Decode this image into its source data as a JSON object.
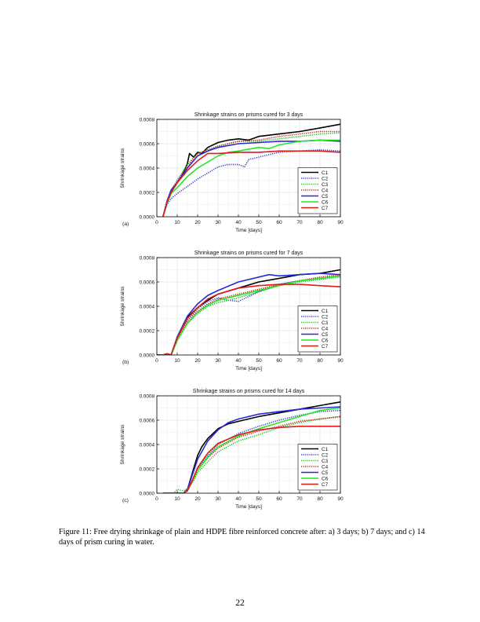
{
  "figure": {
    "caption": "Figure 11: Free drying shrinkage of plain and HDPE fibre reinforced concrete after: a) 3 days; b) 7 days; and c) 14 days of prism curing in water.",
    "page_number": "22"
  },
  "series_styles": [
    {
      "name": "C1",
      "color": "#000000",
      "dash": ""
    },
    {
      "name": "C2",
      "color": "#2f3fd0",
      "dash": "1.2,1.4"
    },
    {
      "name": "C3",
      "color": "#18c318",
      "dash": "1.2,1.4"
    },
    {
      "name": "C4",
      "color": "#cf2020",
      "dash": "1.2,1.4"
    },
    {
      "name": "C5",
      "color": "#2a2ad6",
      "dash": ""
    },
    {
      "name": "C6",
      "color": "#28e628",
      "dash": ""
    },
    {
      "name": "C7",
      "color": "#dd1c1c",
      "dash": ""
    }
  ],
  "chart_data": [
    {
      "type": "line",
      "panel_label": "(a)",
      "title": "Shrinkage strains on prisms cured for 3 days",
      "xlabel": "Time [days]",
      "ylabel": "Shrinkage strains",
      "xlim": [
        0,
        90
      ],
      "ylim": [
        0,
        0.0008
      ],
      "xticks": [
        "0",
        "10",
        "20",
        "30",
        "40",
        "50",
        "60",
        "70",
        "80",
        "90"
      ],
      "yticks": [
        "0.0000",
        "0.0002",
        "0.0004",
        "0.0006",
        "0.0008"
      ],
      "grid": true,
      "legend_position": "lower-right",
      "series": [
        {
          "name": "C1",
          "x": [
            3,
            5,
            7,
            10,
            12,
            14,
            15,
            16,
            18,
            20,
            22,
            25,
            30,
            35,
            40,
            45,
            50,
            60,
            70,
            80,
            90
          ],
          "y": [
            0,
            0.00012,
            0.0002,
            0.00028,
            0.00033,
            0.0004,
            0.00044,
            0.00052,
            0.00049,
            0.00053,
            0.00052,
            0.00057,
            0.00061,
            0.00063,
            0.00064,
            0.00063,
            0.00066,
            0.00068,
            0.0007,
            0.00073,
            0.00076
          ]
        },
        {
          "name": "C2",
          "x": [
            3,
            5,
            7,
            10,
            15,
            20,
            25,
            30,
            35,
            40,
            43,
            45,
            50,
            55,
            60,
            70,
            80,
            90
          ],
          "y": [
            0,
            0.0001,
            0.00015,
            0.00019,
            0.00025,
            0.00031,
            0.00036,
            0.00041,
            0.00043,
            0.00043,
            0.00041,
            0.00047,
            0.00049,
            0.00051,
            0.00053,
            0.00054,
            0.00055,
            0.00054
          ]
        },
        {
          "name": "C3",
          "x": [
            3,
            5,
            7,
            10,
            15,
            20,
            25,
            30,
            40,
            50,
            60,
            70,
            80,
            90
          ],
          "y": [
            0,
            0.00013,
            0.00022,
            0.0003,
            0.00043,
            0.00052,
            0.00055,
            0.00058,
            0.00062,
            0.00062,
            0.00064,
            0.00066,
            0.00068,
            0.00069
          ]
        },
        {
          "name": "C4",
          "x": [
            3,
            5,
            7,
            10,
            15,
            18,
            20,
            25,
            30,
            40,
            50,
            60,
            70,
            80,
            90
          ],
          "y": [
            0,
            0.00012,
            0.0002,
            0.0003,
            0.00041,
            0.00048,
            0.00052,
            0.00055,
            0.00058,
            0.00062,
            0.00063,
            0.00066,
            0.00068,
            0.0007,
            0.0007
          ]
        },
        {
          "name": "C5",
          "x": [
            3,
            5,
            7,
            10,
            15,
            20,
            25,
            30,
            40,
            50,
            60,
            70,
            80,
            90
          ],
          "y": [
            0,
            0.00013,
            0.00022,
            0.00028,
            0.0004,
            0.0005,
            0.00054,
            0.00057,
            0.0006,
            0.00061,
            0.00062,
            0.00062,
            0.00063,
            0.00062
          ]
        },
        {
          "name": "C6",
          "x": [
            3,
            5,
            7,
            10,
            15,
            20,
            25,
            30,
            35,
            40,
            50,
            55,
            60,
            70,
            80,
            90
          ],
          "y": [
            0,
            0.00011,
            0.00019,
            0.00024,
            0.00033,
            0.0004,
            0.00045,
            0.0005,
            0.00053,
            0.00054,
            0.00057,
            0.00056,
            0.00059,
            0.00062,
            0.00063,
            0.00063
          ]
        },
        {
          "name": "C7",
          "x": [
            3,
            5,
            7,
            10,
            15,
            20,
            25,
            30,
            40,
            50,
            60,
            70,
            80,
            90
          ],
          "y": [
            0,
            0.00012,
            0.0002,
            0.00028,
            0.00038,
            0.00046,
            0.00052,
            0.00052,
            0.00053,
            0.00053,
            0.00054,
            0.00054,
            0.00054,
            0.00053
          ]
        }
      ]
    },
    {
      "type": "line",
      "panel_label": "(b)",
      "title": "Shrinkage strains on prisms cured for 7 days",
      "xlabel": "Time [days]",
      "ylabel": "Shrinkage strains",
      "xlim": [
        0,
        90
      ],
      "ylim": [
        0,
        0.0008
      ],
      "xticks": [
        "0",
        "10",
        "20",
        "30",
        "40",
        "50",
        "60",
        "70",
        "80",
        "90"
      ],
      "yticks": [
        "0.0000",
        "0.0002",
        "0.0004",
        "0.0006",
        "0.0008"
      ],
      "grid": true,
      "legend_position": "lower-right",
      "series": [
        {
          "name": "C1",
          "x": [
            0,
            3,
            5,
            7,
            8,
            10,
            15,
            20,
            25,
            30,
            40,
            50,
            60,
            70,
            80,
            90
          ],
          "y": [
            0,
            0,
            1e-05,
            0,
            5e-05,
            0.00014,
            0.00031,
            0.00039,
            0.00045,
            0.0005,
            0.00055,
            0.0006,
            0.00063,
            0.00066,
            0.00067,
            0.0007
          ]
        },
        {
          "name": "C2",
          "x": [
            0,
            3,
            5,
            7,
            8,
            10,
            15,
            20,
            25,
            30,
            35,
            40,
            50,
            60,
            70,
            80,
            90
          ],
          "y": [
            0,
            0,
            1e-05,
            0,
            4e-05,
            0.00012,
            0.00028,
            0.00038,
            0.00044,
            0.00047,
            0.00045,
            0.00044,
            0.00052,
            0.00058,
            0.00061,
            0.00063,
            0.00065
          ]
        },
        {
          "name": "C3",
          "x": [
            0,
            3,
            5,
            7,
            8,
            10,
            15,
            20,
            25,
            30,
            40,
            50,
            60,
            70,
            80,
            90
          ],
          "y": [
            0,
            0,
            1e-05,
            0,
            4e-05,
            0.00012,
            0.00026,
            0.00034,
            0.0004,
            0.00043,
            0.00047,
            0.00052,
            0.00057,
            0.0006,
            0.00062,
            0.00064
          ]
        },
        {
          "name": "C4",
          "x": [
            0,
            3,
            5,
            7,
            8,
            10,
            15,
            20,
            25,
            30,
            40,
            50,
            60,
            70,
            80,
            90
          ],
          "y": [
            0,
            0,
            1e-05,
            0,
            4e-05,
            0.00013,
            0.00028,
            0.00036,
            0.00042,
            0.00046,
            0.0005,
            0.00054,
            0.00058,
            0.00061,
            0.00064,
            0.00066
          ]
        },
        {
          "name": "C5",
          "x": [
            0,
            3,
            5,
            7,
            8,
            10,
            15,
            20,
            25,
            30,
            40,
            50,
            55,
            60,
            70,
            80,
            90
          ],
          "y": [
            0,
            0,
            1e-05,
            0,
            5e-05,
            0.00015,
            0.00032,
            0.00042,
            0.00049,
            0.00053,
            0.0006,
            0.00064,
            0.00066,
            0.00065,
            0.00066,
            0.00067,
            0.00066
          ]
        },
        {
          "name": "C6",
          "x": [
            0,
            3,
            5,
            7,
            8,
            10,
            15,
            20,
            25,
            30,
            40,
            50,
            60,
            70,
            80,
            90
          ],
          "y": [
            0,
            0,
            1e-05,
            0,
            4e-05,
            0.00012,
            0.00026,
            0.00035,
            0.00041,
            0.00045,
            0.00049,
            0.00053,
            0.00057,
            0.00061,
            0.00063,
            0.00065
          ]
        },
        {
          "name": "C7",
          "x": [
            0,
            3,
            5,
            7,
            8,
            10,
            15,
            20,
            25,
            30,
            40,
            50,
            60,
            70,
            80,
            90
          ],
          "y": [
            0,
            0,
            1e-05,
            0,
            5e-05,
            0.00014,
            0.0003,
            0.00039,
            0.00046,
            0.0005,
            0.00055,
            0.00057,
            0.00058,
            0.00058,
            0.00057,
            0.00056
          ]
        }
      ]
    },
    {
      "type": "line",
      "panel_label": "(c)",
      "title": "Shrinkage strains on prisms cured for 14 days",
      "xlabel": "Time [days]",
      "ylabel": "Shrinkage strains",
      "xlim": [
        0,
        90
      ],
      "ylim": [
        0,
        0.0008
      ],
      "xticks": [
        "0",
        "10",
        "20",
        "30",
        "40",
        "50",
        "60",
        "70",
        "80",
        "90"
      ],
      "yticks": [
        "0.0000",
        "0.0002",
        "0.0004",
        "0.0006",
        "0.0008"
      ],
      "grid": true,
      "legend_position": "lower-right",
      "series": [
        {
          "name": "C1",
          "x": [
            3,
            10,
            13,
            15,
            18,
            20,
            22,
            25,
            30,
            35,
            40,
            50,
            60,
            70,
            80,
            90
          ],
          "y": [
            0,
            0,
            0,
            3e-05,
            0.0002,
            0.00031,
            0.00038,
            0.00045,
            0.00053,
            0.00057,
            0.00059,
            0.00063,
            0.00066,
            0.00069,
            0.00072,
            0.00075
          ]
        },
        {
          "name": "C2",
          "x": [
            3,
            10,
            13,
            15,
            18,
            20,
            25,
            30,
            40,
            50,
            60,
            70,
            80,
            90
          ],
          "y": [
            0,
            0,
            0,
            2e-05,
            0.00012,
            0.0002,
            0.00031,
            0.0004,
            0.00049,
            0.00055,
            0.0006,
            0.00064,
            0.00067,
            0.00068
          ]
        },
        {
          "name": "C3",
          "x": [
            3,
            8,
            10,
            13,
            15,
            18,
            20,
            25,
            30,
            40,
            50,
            60,
            70,
            80,
            90
          ],
          "y": [
            0,
            0,
            3e-05,
            2e-05,
            4e-05,
            0.0001,
            0.00017,
            0.00026,
            0.00034,
            0.00043,
            0.00048,
            0.00054,
            0.00058,
            0.00061,
            0.00063
          ]
        },
        {
          "name": "C4",
          "x": [
            3,
            10,
            13,
            15,
            18,
            20,
            25,
            30,
            40,
            50,
            60,
            70,
            80,
            90
          ],
          "y": [
            0,
            0,
            0,
            2e-05,
            0.00011,
            0.00019,
            0.00029,
            0.00037,
            0.00046,
            0.00051,
            0.00055,
            0.00059,
            0.00061,
            0.00063
          ]
        },
        {
          "name": "C5",
          "x": [
            3,
            10,
            13,
            15,
            18,
            20,
            25,
            30,
            35,
            40,
            50,
            60,
            70,
            80,
            90
          ],
          "y": [
            0,
            0,
            0,
            3e-05,
            0.00018,
            0.00028,
            0.00043,
            0.00052,
            0.00058,
            0.00061,
            0.00065,
            0.00067,
            0.00069,
            0.0007,
            0.00071
          ]
        },
        {
          "name": "C6",
          "x": [
            3,
            10,
            13,
            15,
            18,
            20,
            25,
            30,
            40,
            50,
            60,
            70,
            80,
            90
          ],
          "y": [
            0,
            0,
            0,
            2e-05,
            0.00012,
            0.00019,
            0.0003,
            0.00038,
            0.00047,
            0.00053,
            0.00058,
            0.00063,
            0.00068,
            0.0007
          ]
        },
        {
          "name": "C7",
          "x": [
            3,
            10,
            13,
            15,
            18,
            20,
            25,
            30,
            40,
            50,
            60,
            70,
            80,
            90
          ],
          "y": [
            0,
            0,
            0,
            2e-05,
            0.00013,
            0.00021,
            0.00033,
            0.00041,
            0.00048,
            0.00052,
            0.00054,
            0.00055,
            0.00055,
            0.00055
          ]
        }
      ]
    }
  ]
}
